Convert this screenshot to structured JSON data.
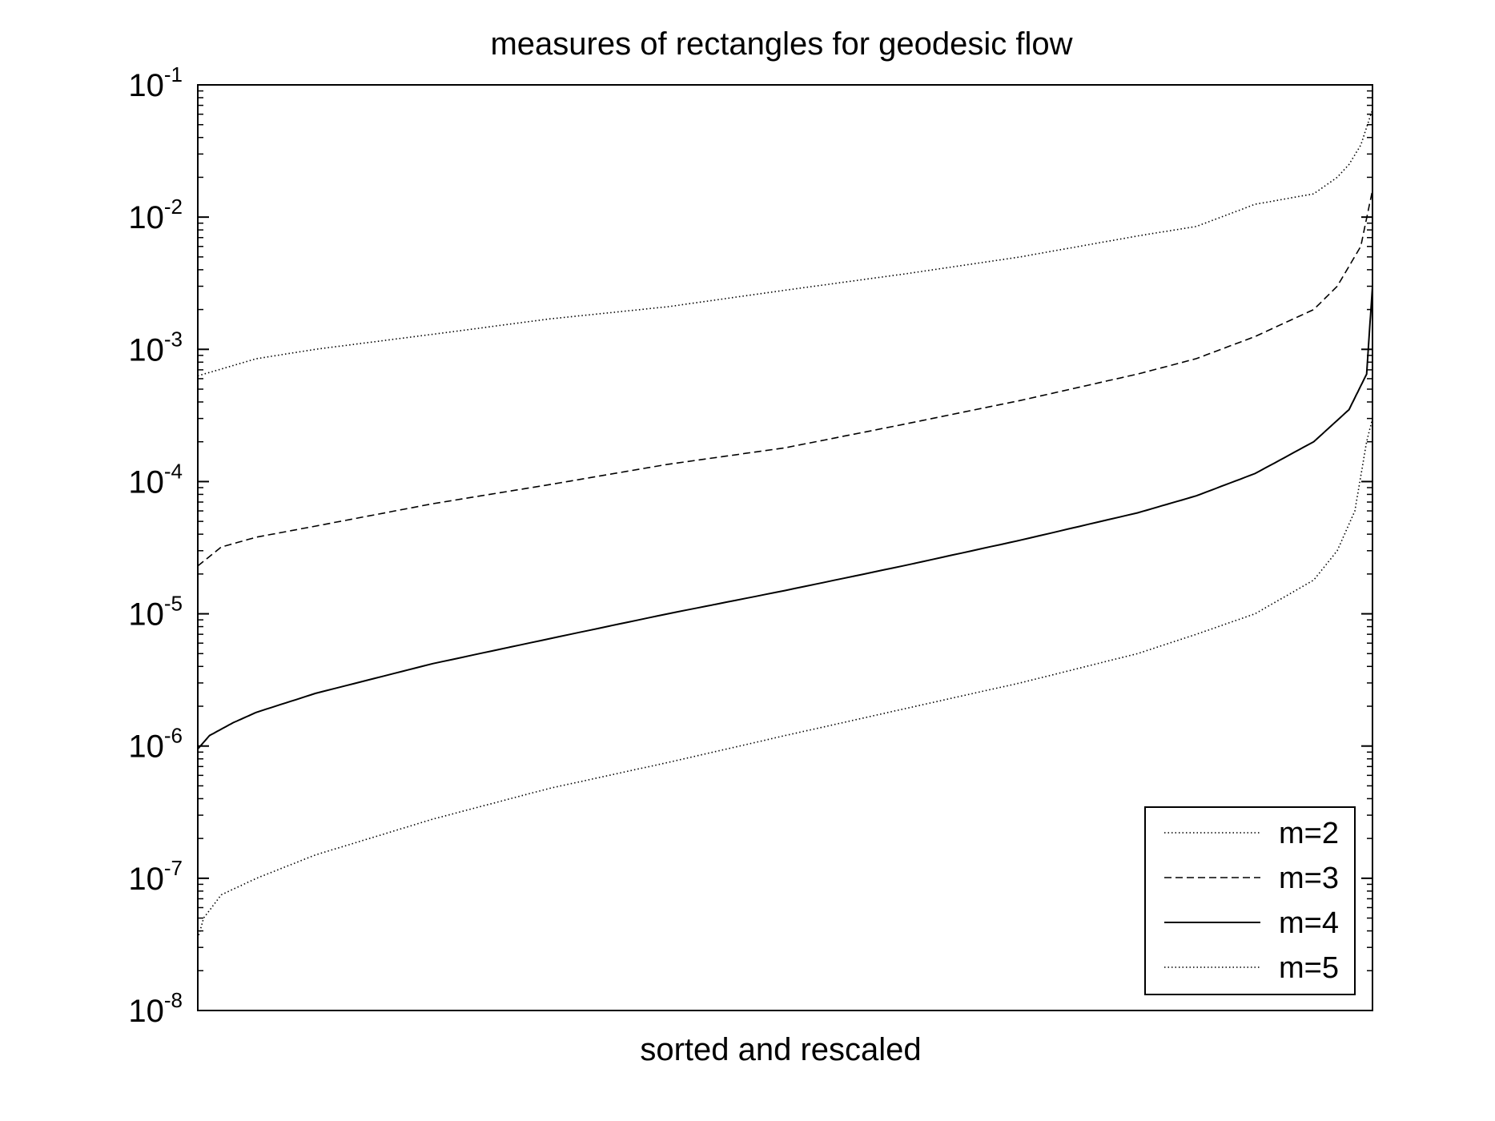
{
  "chart_data": {
    "type": "line",
    "title": "measures of rectangles for geodesic flow",
    "xlabel": "sorted and rescaled",
    "ylabel": "",
    "yscale": "log",
    "ylim": [
      1e-08,
      0.1
    ],
    "xlim": [
      0,
      1
    ],
    "grid": false,
    "legend_position": "bottom-right",
    "y_ticks": [
      {
        "base": "10",
        "exp": "-1",
        "value": 0.1
      },
      {
        "base": "10",
        "exp": "-2",
        "value": 0.01
      },
      {
        "base": "10",
        "exp": "-3",
        "value": 0.001
      },
      {
        "base": "10",
        "exp": "-4",
        "value": 0.0001
      },
      {
        "base": "10",
        "exp": "-5",
        "value": 1e-05
      },
      {
        "base": "10",
        "exp": "-6",
        "value": 1e-06
      },
      {
        "base": "10",
        "exp": "-7",
        "value": 1e-07
      },
      {
        "base": "10",
        "exp": "-8",
        "value": 1e-08
      }
    ],
    "series": [
      {
        "name": "m=2",
        "style": "dotted",
        "x": [
          0,
          0.05,
          0.1,
          0.2,
          0.3,
          0.4,
          0.5,
          0.6,
          0.7,
          0.8,
          0.85,
          0.9,
          0.95,
          0.97,
          0.98,
          0.99,
          1.0
        ],
        "y": [
          0.00063,
          0.00085,
          0.001,
          0.0013,
          0.0017,
          0.0021,
          0.0028,
          0.0037,
          0.005,
          0.0072,
          0.0085,
          0.0125,
          0.015,
          0.02,
          0.025,
          0.035,
          0.065
        ]
      },
      {
        "name": "m=3",
        "style": "dashed",
        "x": [
          0,
          0.02,
          0.05,
          0.1,
          0.2,
          0.3,
          0.4,
          0.5,
          0.6,
          0.7,
          0.8,
          0.85,
          0.9,
          0.95,
          0.97,
          0.99,
          1.0
        ],
        "y": [
          2.3e-05,
          3.2e-05,
          3.8e-05,
          4.6e-05,
          6.8e-05,
          9.5e-05,
          0.000135,
          0.00018,
          0.00027,
          0.00041,
          0.00065,
          0.00085,
          0.00125,
          0.002,
          0.003,
          0.006,
          0.016
        ]
      },
      {
        "name": "m=4",
        "style": "solid",
        "x": [
          0,
          0.01,
          0.03,
          0.05,
          0.1,
          0.2,
          0.3,
          0.4,
          0.5,
          0.6,
          0.7,
          0.8,
          0.85,
          0.9,
          0.95,
          0.98,
          0.995,
          1.0
        ],
        "y": [
          9.5e-07,
          1.2e-06,
          1.5e-06,
          1.8e-06,
          2.5e-06,
          4.2e-06,
          6.5e-06,
          1e-05,
          1.5e-05,
          2.3e-05,
          3.6e-05,
          5.8e-05,
          7.8e-05,
          0.000115,
          0.0002,
          0.00035,
          0.00065,
          0.003
        ]
      },
      {
        "name": "m=5",
        "style": "dotted",
        "x": [
          0,
          0.005,
          0.02,
          0.05,
          0.1,
          0.2,
          0.3,
          0.4,
          0.5,
          0.6,
          0.7,
          0.8,
          0.85,
          0.9,
          0.95,
          0.97,
          0.985,
          0.995,
          1.0
        ],
        "y": [
          3.5e-08,
          5e-08,
          7.5e-08,
          1e-07,
          1.5e-07,
          2.8e-07,
          4.8e-07,
          7.5e-07,
          1.2e-06,
          1.9e-06,
          3e-06,
          5e-06,
          7e-06,
          1e-05,
          1.8e-05,
          3e-05,
          6e-05,
          0.0002,
          0.0003
        ]
      }
    ]
  }
}
